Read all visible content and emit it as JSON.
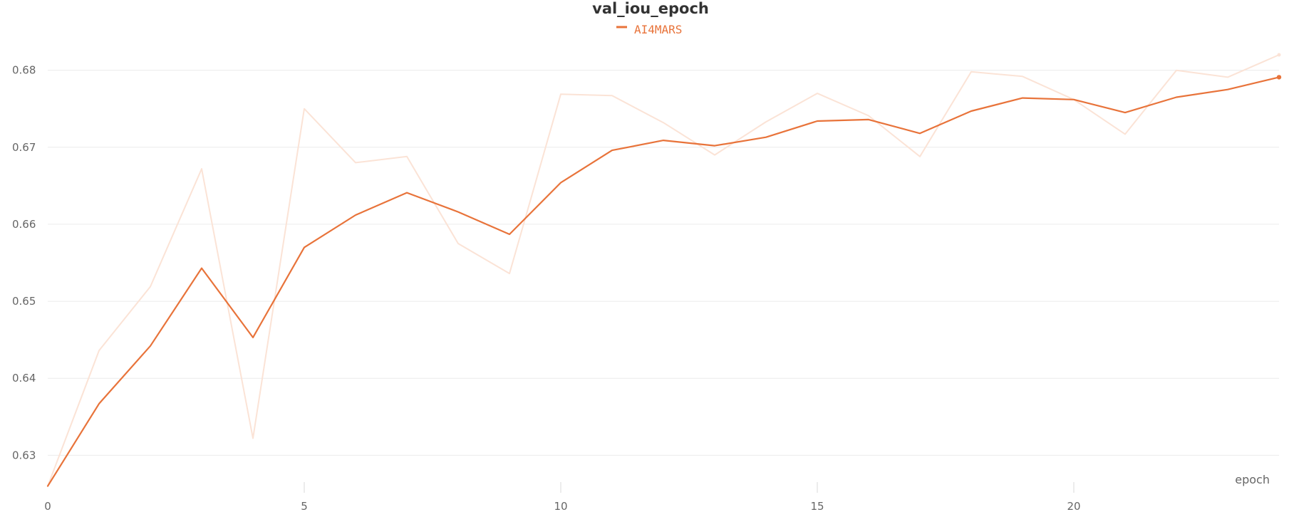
{
  "chart_data": {
    "type": "line",
    "title": "val_iou_epoch",
    "xlabel": "epoch",
    "ylabel": "",
    "xlim": [
      0,
      24
    ],
    "ylim": [
      0.6255,
      0.6845
    ],
    "x_ticks": [
      0,
      5,
      10,
      15,
      20
    ],
    "x_tick_labels": [
      "0",
      "5",
      "10",
      "15",
      "20"
    ],
    "y_ticks": [
      0.63,
      0.64,
      0.65,
      0.66,
      0.67,
      0.68
    ],
    "y_tick_labels": [
      "0.63",
      "0.64",
      "0.65",
      "0.66",
      "0.67",
      "0.68"
    ],
    "grid": "horizontal",
    "legend_position": "top-center",
    "x": [
      0,
      1,
      2,
      3,
      4,
      5,
      6,
      7,
      8,
      9,
      10,
      11,
      12,
      13,
      14,
      15,
      16,
      17,
      18,
      19,
      20,
      21,
      22,
      23,
      24
    ],
    "series": [
      {
        "name": "AI4MARS",
        "color": "#e8733a",
        "role": "smoothed",
        "values": [
          0.626,
          0.6367,
          0.6442,
          0.6543,
          0.6453,
          0.657,
          0.6612,
          0.6641,
          0.6616,
          0.6587,
          0.6654,
          0.6696,
          0.6709,
          0.6702,
          0.6713,
          0.6734,
          0.6736,
          0.6718,
          0.6747,
          0.6764,
          0.6762,
          0.6745,
          0.6765,
          0.6775,
          0.6791
        ]
      },
      {
        "name": "",
        "color": "#fbe3d6",
        "role": "raw",
        "values": [
          0.626,
          0.6436,
          0.6519,
          0.6672,
          0.6322,
          0.675,
          0.668,
          0.6688,
          0.6575,
          0.6536,
          0.6769,
          0.6767,
          0.6732,
          0.669,
          0.6733,
          0.677,
          0.6741,
          0.6688,
          0.6798,
          0.6792,
          0.6762,
          0.6717,
          0.68,
          0.6791,
          0.682
        ]
      }
    ]
  }
}
